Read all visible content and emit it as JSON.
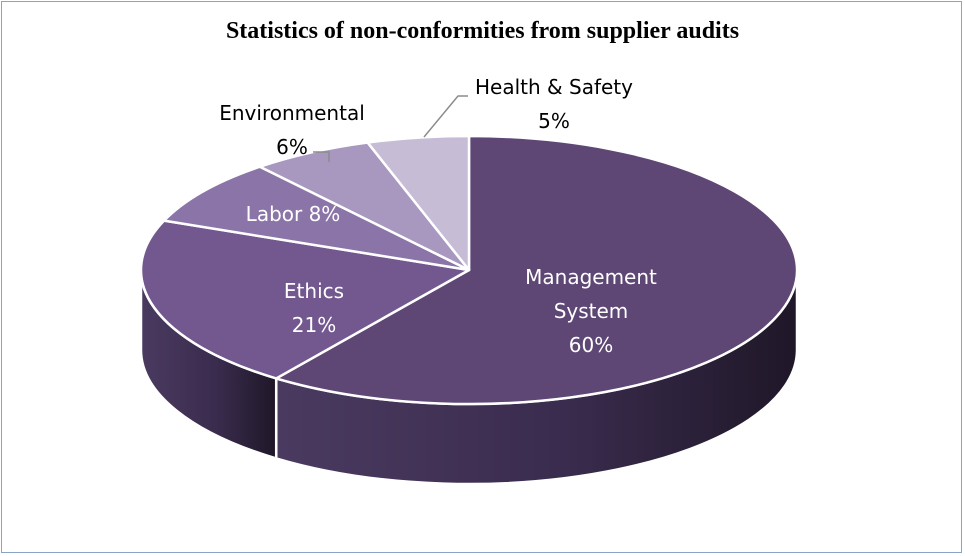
{
  "chart_data": {
    "type": "pie",
    "title": "Statistics of non-conformities from supplier audits",
    "three_d": true,
    "slices": [
      {
        "label": "Management System",
        "label_lines": [
          "Management",
          "System"
        ],
        "value_label": "60%",
        "value": 60,
        "color": "#5e4775",
        "text_color": "#ffffff"
      },
      {
        "label": "Ethics",
        "label_lines": [
          "Ethics"
        ],
        "value_label": "21%",
        "value": 21,
        "color": "#73588f",
        "text_color": "#ffffff"
      },
      {
        "label": "Labor",
        "label_lines": [
          "Labor 8%"
        ],
        "value_label": "",
        "value": 8,
        "color": "#8b74a8",
        "text_color": "#ffffff"
      },
      {
        "label": "Environmental",
        "label_lines": [
          "Environmental"
        ],
        "value_label": "6%",
        "value": 6,
        "color": "#a898bf",
        "text_color": "#000000"
      },
      {
        "label": "Health & Safety",
        "label_lines": [
          "Health & Safety"
        ],
        "value_label": "5%",
        "value": 5,
        "color": "#c6bcd6",
        "text_color": "#000000"
      }
    ]
  }
}
